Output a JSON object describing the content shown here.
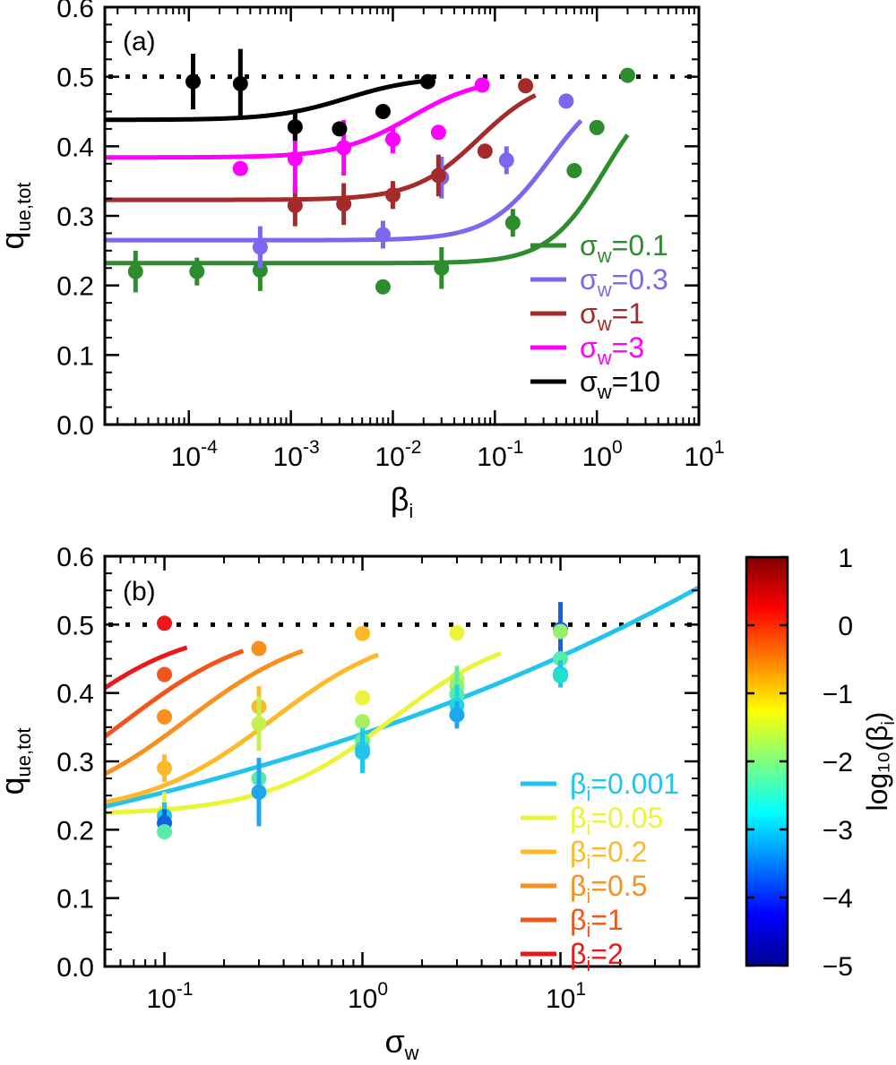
{
  "chart_data": [
    {
      "type": "scatter",
      "panel_label": "(a)",
      "xscale": "log",
      "xlim": [
        1.5e-05,
        10
      ],
      "ylim": [
        0.0,
        0.6
      ],
      "xticks": [
        {
          "v": 0.0001,
          "base": "10",
          "exp": "-4"
        },
        {
          "v": 0.001,
          "base": "10",
          "exp": "-3"
        },
        {
          "v": 0.01,
          "base": "10",
          "exp": "-2"
        },
        {
          "v": 0.1,
          "base": "10",
          "exp": "-1"
        },
        {
          "v": 1,
          "base": "10",
          "exp": "0"
        },
        {
          "v": 10,
          "base": "10",
          "exp": "1"
        }
      ],
      "yticks": [
        "0.0",
        "0.1",
        "0.2",
        "0.3",
        "0.4",
        "0.5",
        "0.6"
      ],
      "xlabel": {
        "main": "β",
        "sub": "i"
      },
      "ylabel": {
        "main": "q",
        "sub": "ue,tot"
      },
      "reference_line": {
        "y": 0.5,
        "style": "dotted"
      },
      "legend": {
        "placement": "bottom-right"
      },
      "series": [
        {
          "legend_main": "σ",
          "legend_sub": "w",
          "legend_rest": "=0.1",
          "color": "#2e8b2e",
          "param": 0.1,
          "fit": {
            "floor": 0.232,
            "x0": 1.2,
            "w": 0.28,
            "xmax": 2.0
          },
          "points": [
            {
              "x": 3e-05,
              "y": 0.22,
              "err": 0.03
            },
            {
              "x": 0.00012,
              "y": 0.22,
              "err": 0.02
            },
            {
              "x": 0.0005,
              "y": 0.222,
              "err": 0.03
            },
            {
              "x": 0.008,
              "y": 0.198,
              "err": 0.01
            },
            {
              "x": 0.03,
              "y": 0.225,
              "err": 0.03
            },
            {
              "x": 0.15,
              "y": 0.29,
              "err": 0.02
            },
            {
              "x": 0.6,
              "y": 0.365,
              "err": 0.01
            },
            {
              "x": 1.0,
              "y": 0.427,
              "err": 0.0
            },
            {
              "x": 2.0,
              "y": 0.502,
              "err": 0.0
            }
          ]
        },
        {
          "legend_main": "σ",
          "legend_sub": "w",
          "legend_rest": "=0.3",
          "color": "#7b68ee",
          "param": 0.3,
          "fit": {
            "floor": 0.265,
            "x0": 0.35,
            "w": 0.3,
            "xmax": 0.7
          },
          "points": [
            {
              "x": 0.0005,
              "y": 0.255,
              "err": 0.03
            },
            {
              "x": 0.008,
              "y": 0.273,
              "err": 0.02
            },
            {
              "x": 0.03,
              "y": 0.355,
              "err": 0.03
            },
            {
              "x": 0.13,
              "y": 0.38,
              "err": 0.02
            },
            {
              "x": 0.5,
              "y": 0.465,
              "err": 0.0
            }
          ]
        },
        {
          "legend_main": "σ",
          "legend_sub": "w",
          "legend_rest": "=1",
          "color": "#a52a2a",
          "param": 1,
          "fit": {
            "floor": 0.323,
            "x0": 0.07,
            "w": 0.32,
            "xmax": 0.25
          },
          "points": [
            {
              "x": 0.0011,
              "y": 0.315,
              "err": 0.03
            },
            {
              "x": 0.0033,
              "y": 0.317,
              "err": 0.03
            },
            {
              "x": 0.01,
              "y": 0.33,
              "err": 0.02
            },
            {
              "x": 0.028,
              "y": 0.358,
              "err": 0.03
            },
            {
              "x": 0.08,
              "y": 0.393,
              "err": 0.0
            },
            {
              "x": 0.2,
              "y": 0.487,
              "err": 0.0
            }
          ]
        },
        {
          "legend_main": "σ",
          "legend_sub": "w",
          "legend_rest": "=3",
          "color": "#ff00ff",
          "param": 3,
          "fit": {
            "floor": 0.384,
            "x0": 0.015,
            "w": 0.35,
            "xmax": 0.065
          },
          "points": [
            {
              "x": 0.00032,
              "y": 0.368,
              "err": 0.01
            },
            {
              "x": 0.0011,
              "y": 0.382,
              "err": 0.05
            },
            {
              "x": 0.0033,
              "y": 0.398,
              "err": 0.04
            },
            {
              "x": 0.01,
              "y": 0.41,
              "err": 0.02
            },
            {
              "x": 0.028,
              "y": 0.42,
              "err": 0.0
            },
            {
              "x": 0.075,
              "y": 0.488,
              "err": 0.0
            }
          ]
        },
        {
          "legend_main": "σ",
          "legend_sub": "w",
          "legend_rest": "=10",
          "color": "#000000",
          "param": 10,
          "fit": {
            "floor": 0.438,
            "x0": 0.0035,
            "w": 0.35,
            "xmax": 0.022
          },
          "points": [
            {
              "x": 0.00011,
              "y": 0.493,
              "err": 0.04
            },
            {
              "x": 0.00032,
              "y": 0.49,
              "err": 0.05
            },
            {
              "x": 0.0011,
              "y": 0.428,
              "err": 0.02
            },
            {
              "x": 0.003,
              "y": 0.425,
              "err": 0.0
            },
            {
              "x": 0.008,
              "y": 0.45,
              "err": 0.0
            },
            {
              "x": 0.022,
              "y": 0.493,
              "err": 0.0
            }
          ]
        }
      ]
    },
    {
      "type": "scatter",
      "panel_label": "(b)",
      "xscale": "log",
      "xlim": [
        0.05,
        50
      ],
      "ylim": [
        0.0,
        0.6
      ],
      "xticks": [
        {
          "v": 0.1,
          "base": "10",
          "exp": "-1"
        },
        {
          "v": 1,
          "base": "10",
          "exp": "0"
        },
        {
          "v": 10,
          "base": "10",
          "exp": "1"
        }
      ],
      "yticks": [
        "0.0",
        "0.1",
        "0.2",
        "0.3",
        "0.4",
        "0.5",
        "0.6"
      ],
      "xlabel": {
        "main": "σ",
        "sub": "w"
      },
      "ylabel": {
        "main": "q",
        "sub": "ue,tot"
      },
      "reference_line": {
        "y": 0.5,
        "style": "dotted"
      },
      "legend": {
        "placement": "bottom-right"
      },
      "series": [
        {
          "legend_main": "β",
          "legend_sub": "i",
          "legend_rest": "=0.001",
          "color": "#22c4ee",
          "param": 0.001,
          "fit": {
            "type": "power",
            "A": 0.34,
            "p": 0.125,
            "xmin": 0.05,
            "xmax": 50
          }
        },
        {
          "legend_main": "β",
          "legend_sub": "i",
          "legend_rest": "=0.05",
          "color": "#ecf43a",
          "param": 0.05,
          "fit": {
            "type": "sig",
            "floor": 0.222,
            "x0": 1.4,
            "w": 0.32,
            "xmin": 0.05,
            "xmax": 5
          }
        },
        {
          "legend_main": "β",
          "legend_sub": "i",
          "legend_rest": "=0.2",
          "color": "#fdb927",
          "param": 0.2,
          "fit": {
            "type": "sig",
            "floor": 0.222,
            "x0": 0.35,
            "w": 0.32,
            "xmin": 0.05,
            "xmax": 1.2
          }
        },
        {
          "legend_main": "β",
          "legend_sub": "i",
          "legend_rest": "=0.5",
          "color": "#f7901e",
          "param": 0.5,
          "fit": {
            "type": "sig",
            "floor": 0.222,
            "x0": 0.13,
            "w": 0.32,
            "xmin": 0.05,
            "xmax": 0.5
          }
        },
        {
          "legend_main": "β",
          "legend_sub": "i",
          "legend_rest": "=1",
          "color": "#f0561b",
          "param": 1,
          "fit": {
            "type": "sig",
            "floor": 0.222,
            "x0": 0.065,
            "w": 0.32,
            "xmin": 0.05,
            "xmax": 0.25
          }
        },
        {
          "legend_main": "β",
          "legend_sub": "i",
          "legend_rest": "=2",
          "color": "#e8181b",
          "param": 2,
          "fit": {
            "type": "sig",
            "floor": 0.222,
            "x0": 0.03,
            "w": 0.32,
            "xmin": 0.05,
            "xmax": 0.13
          }
        }
      ],
      "points": [
        {
          "x": 0.1,
          "y": 0.502,
          "err": 0.0,
          "c": "#e8181b"
        },
        {
          "x": 0.1,
          "y": 0.427,
          "err": 0.0,
          "c": "#f0561b"
        },
        {
          "x": 0.1,
          "y": 0.365,
          "err": 0.01,
          "c": "#f7901e"
        },
        {
          "x": 0.1,
          "y": 0.29,
          "err": 0.02,
          "c": "#fdb927"
        },
        {
          "x": 0.1,
          "y": 0.225,
          "err": 0.03,
          "c": "#ecf43a"
        },
        {
          "x": 0.1,
          "y": 0.22,
          "err": 0.02,
          "c": "#22c4ee"
        },
        {
          "x": 0.1,
          "y": 0.21,
          "err": 0.02,
          "c": "#1460e0"
        },
        {
          "x": 0.1,
          "y": 0.197,
          "err": 0.01,
          "c": "#58ecaa"
        },
        {
          "x": 0.3,
          "y": 0.465,
          "err": 0.0,
          "c": "#f7901e"
        },
        {
          "x": 0.3,
          "y": 0.38,
          "err": 0.03,
          "c": "#fdb927"
        },
        {
          "x": 0.3,
          "y": 0.355,
          "err": 0.04,
          "c": "#c6f050"
        },
        {
          "x": 0.3,
          "y": 0.275,
          "err": 0.01,
          "c": "#58ecaa"
        },
        {
          "x": 0.3,
          "y": 0.255,
          "err": 0.05,
          "c": "#22a4ee"
        },
        {
          "x": 1.0,
          "y": 0.487,
          "err": 0.0,
          "c": "#fdb927"
        },
        {
          "x": 1.0,
          "y": 0.393,
          "err": 0.0,
          "c": "#ecf43a"
        },
        {
          "x": 1.0,
          "y": 0.358,
          "err": 0.01,
          "c": "#a8f060"
        },
        {
          "x": 1.0,
          "y": 0.33,
          "err": 0.02,
          "c": "#6cec8e"
        },
        {
          "x": 1.0,
          "y": 0.318,
          "err": 0.03,
          "c": "#22d4e0"
        },
        {
          "x": 1.0,
          "y": 0.313,
          "err": 0.03,
          "c": "#22c4ee"
        },
        {
          "x": 3.0,
          "y": 0.488,
          "err": 0.0,
          "c": "#ecf43a"
        },
        {
          "x": 3.0,
          "y": 0.42,
          "err": 0.02,
          "c": "#c6f050"
        },
        {
          "x": 3.0,
          "y": 0.41,
          "err": 0.03,
          "c": "#98ee70"
        },
        {
          "x": 3.0,
          "y": 0.398,
          "err": 0.04,
          "c": "#58ecaa"
        },
        {
          "x": 3.0,
          "y": 0.382,
          "err": 0.03,
          "c": "#22d4e0"
        },
        {
          "x": 3.0,
          "y": 0.368,
          "err": 0.02,
          "c": "#1ea6ee"
        },
        {
          "x": 10,
          "y": 0.493,
          "err": 0.04,
          "c": "#1460e0"
        },
        {
          "x": 10,
          "y": 0.49,
          "err": 0.0,
          "c": "#98ee70"
        },
        {
          "x": 10,
          "y": 0.45,
          "err": 0.0,
          "c": "#58ecaa"
        },
        {
          "x": 10,
          "y": 0.428,
          "err": 0.02,
          "c": "#22c4ee"
        },
        {
          "x": 10,
          "y": 0.425,
          "err": 0.0,
          "c": "#22e0d0"
        }
      ]
    }
  ],
  "colorbar": {
    "label": "log₁₀(β",
    "label_sub": "i",
    "label_close": ")",
    "range": [
      -5,
      1
    ],
    "ticks": [
      "1",
      "0",
      "−1",
      "−2",
      "−3",
      "−4",
      "−5"
    ],
    "colormap": [
      "#00008f",
      "#0000ff",
      "#007fff",
      "#00ffff",
      "#7fff7f",
      "#ffff00",
      "#ff7f00",
      "#ff0000",
      "#7f0000"
    ]
  }
}
